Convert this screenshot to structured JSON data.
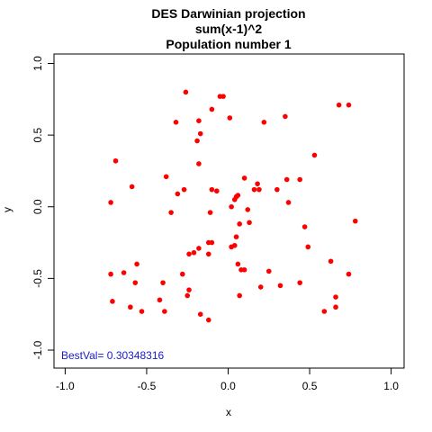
{
  "chart_data": {
    "type": "scatter",
    "title": "DES Darwinian projection",
    "subtitle_lines": [
      "sum(x-1)^2",
      "Population number 1"
    ],
    "xlabel": "x",
    "ylabel": "y",
    "xlim": [
      -1.0,
      1.0
    ],
    "ylim": [
      -1.0,
      1.0
    ],
    "x_ticks": [
      "-1.0",
      "-0.5",
      "0.0",
      "0.5",
      "1.0"
    ],
    "y_ticks": [
      "-1.0",
      "-0.5",
      "0.0",
      "0.5",
      "1.0"
    ],
    "grid": false,
    "point_color": "#ff0000",
    "annotation": {
      "text": "BestVal= 0.30348316",
      "color": "#1a1acc"
    },
    "series": [
      {
        "points": [
          [
            -0.26,
            0.8
          ],
          [
            -0.05,
            0.77
          ],
          [
            -0.03,
            0.77
          ],
          [
            0.68,
            0.71
          ],
          [
            0.74,
            0.71
          ],
          [
            -0.1,
            0.68
          ],
          [
            -0.32,
            0.59
          ],
          [
            -0.18,
            0.6
          ],
          [
            0.01,
            0.62
          ],
          [
            0.22,
            0.59
          ],
          [
            0.35,
            0.63
          ],
          [
            -0.17,
            0.51
          ],
          [
            -0.19,
            0.46
          ],
          [
            0.53,
            0.36
          ],
          [
            -0.69,
            0.32
          ],
          [
            -0.18,
            0.3
          ],
          [
            -0.38,
            0.21
          ],
          [
            -0.59,
            0.14
          ],
          [
            -0.27,
            0.12
          ],
          [
            -0.31,
            0.09
          ],
          [
            -0.1,
            0.12
          ],
          [
            -0.07,
            0.11
          ],
          [
            0.1,
            0.2
          ],
          [
            0.18,
            0.16
          ],
          [
            0.19,
            0.12
          ],
          [
            0.16,
            0.12
          ],
          [
            0.3,
            0.12
          ],
          [
            0.36,
            0.19
          ],
          [
            0.44,
            0.19
          ],
          [
            0.06,
            0.08
          ],
          [
            0.05,
            0.07
          ],
          [
            0.04,
            0.05
          ],
          [
            -0.72,
            0.03
          ],
          [
            0.37,
            0.03
          ],
          [
            0.02,
            0.0
          ],
          [
            0.12,
            -0.02
          ],
          [
            -0.35,
            -0.04
          ],
          [
            -0.11,
            -0.04
          ],
          [
            0.13,
            -0.11
          ],
          [
            0.07,
            -0.12
          ],
          [
            0.47,
            -0.14
          ],
          [
            0.78,
            -0.1
          ],
          [
            0.05,
            -0.21
          ],
          [
            -0.1,
            -0.25
          ],
          [
            -0.12,
            -0.25
          ],
          [
            0.04,
            -0.27
          ],
          [
            0.02,
            -0.28
          ],
          [
            -0.18,
            -0.29
          ],
          [
            0.49,
            -0.28
          ],
          [
            -0.21,
            -0.32
          ],
          [
            -0.24,
            -0.33
          ],
          [
            -0.12,
            -0.33
          ],
          [
            -0.56,
            -0.4
          ],
          [
            0.06,
            -0.4
          ],
          [
            0.08,
            -0.44
          ],
          [
            0.1,
            -0.44
          ],
          [
            0.63,
            -0.38
          ],
          [
            0.25,
            -0.45
          ],
          [
            -0.64,
            -0.46
          ],
          [
            -0.72,
            -0.47
          ],
          [
            -0.28,
            -0.47
          ],
          [
            0.74,
            -0.47
          ],
          [
            -0.57,
            -0.53
          ],
          [
            -0.4,
            -0.53
          ],
          [
            0.44,
            -0.53
          ],
          [
            0.32,
            -0.55
          ],
          [
            0.2,
            -0.56
          ],
          [
            -0.24,
            -0.58
          ],
          [
            -0.25,
            -0.62
          ],
          [
            0.07,
            -0.62
          ],
          [
            0.66,
            -0.63
          ],
          [
            -0.71,
            -0.66
          ],
          [
            -0.42,
            -0.65
          ],
          [
            -0.6,
            -0.7
          ],
          [
            0.66,
            -0.7
          ],
          [
            -0.53,
            -0.73
          ],
          [
            -0.39,
            -0.73
          ],
          [
            0.59,
            -0.73
          ],
          [
            -0.17,
            -0.75
          ],
          [
            -0.12,
            -0.79
          ]
        ]
      }
    ]
  }
}
